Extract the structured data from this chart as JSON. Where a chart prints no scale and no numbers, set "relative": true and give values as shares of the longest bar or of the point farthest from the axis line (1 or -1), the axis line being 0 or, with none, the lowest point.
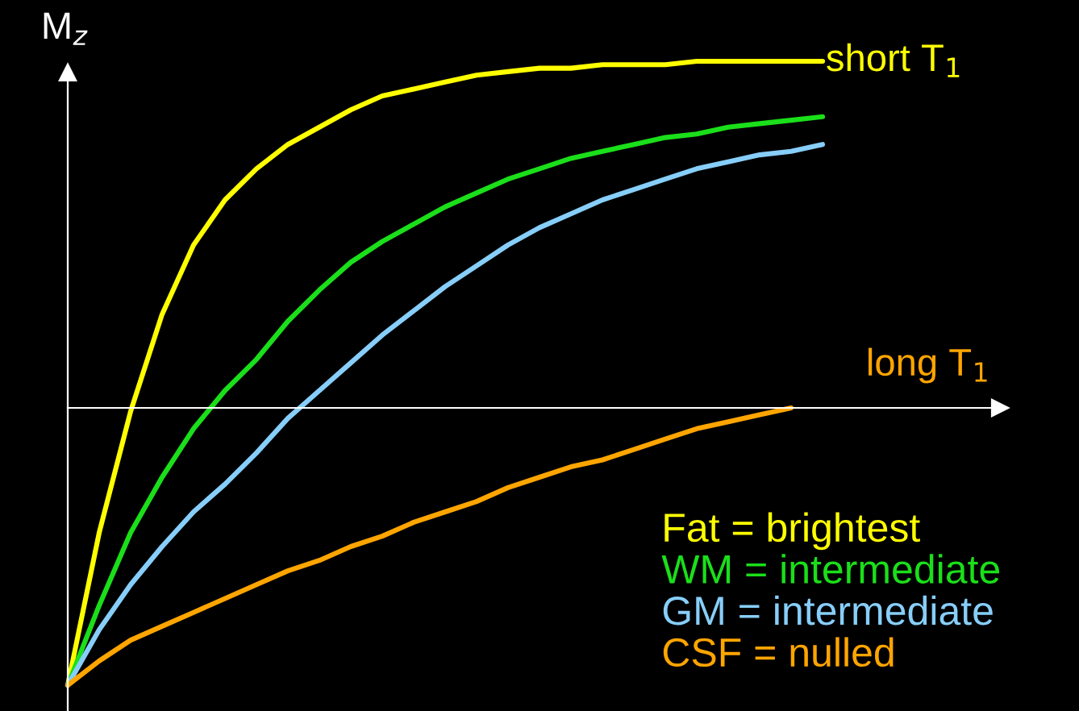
{
  "chart_data": {
    "type": "line",
    "relative": true,
    "ylabel": "M$_{z}$",
    "xlabel": "long T$_{1}$",
    "legend": "bottom right",
    "marker": "none",
    "line_style": "solid",
    "annotations": [
      "short T$_{1}$"
    ],
    "categories": [
      null,
      null,
      null,
      null,
      null,
      null,
      null,
      null,
      null,
      null,
      null,
      null,
      null,
      null,
      null,
      null,
      null,
      null,
      null,
      null,
      null,
      null,
      null,
      null,
      null
    ],
    "series": [
      {
        "name": "Fat = brightest",
        "color": "#ffff00",
        "values": [
          -0.8,
          -0.36,
          -0.01,
          0.27,
          0.47,
          0.6,
          0.69,
          0.76,
          0.81,
          0.86,
          0.9,
          0.92,
          0.94,
          0.96,
          0.97,
          0.98,
          0.98,
          0.99,
          0.99,
          0.99,
          1.0,
          1.0,
          1.0,
          1.0,
          1.0
        ]
      },
      {
        "name": "WM = intermediate",
        "color": "#1adf1a",
        "values": [
          -0.8,
          -0.57,
          -0.36,
          -0.2,
          -0.06,
          0.05,
          0.14,
          0.25,
          0.34,
          0.42,
          0.48,
          0.53,
          0.58,
          0.62,
          0.66,
          0.69,
          0.72,
          0.74,
          0.76,
          0.78,
          0.79,
          0.81,
          0.82,
          0.83,
          0.84
        ]
      },
      {
        "name": "GM = intermediate",
        "color": "#87cefa",
        "values": [
          -0.8,
          -0.64,
          -0.51,
          -0.4,
          -0.3,
          -0.22,
          -0.13,
          -0.03,
          0.05,
          0.13,
          0.21,
          0.28,
          0.35,
          0.41,
          0.47,
          0.52,
          0.56,
          0.6,
          0.63,
          0.66,
          0.69,
          0.71,
          0.73,
          0.74,
          0.76
        ]
      },
      {
        "name": "CSF = nulled",
        "color": "#ffa500",
        "values": [
          -0.8,
          -0.73,
          -0.67,
          -0.63,
          -0.59,
          -0.55,
          -0.51,
          -0.47,
          -0.44,
          -0.4,
          -0.37,
          -0.33,
          -0.3,
          -0.27,
          -0.23,
          -0.2,
          -0.17,
          -0.15,
          -0.12,
          -0.09,
          -0.06,
          -0.04,
          -0.02,
          0.0,
          null
        ]
      }
    ]
  }
}
